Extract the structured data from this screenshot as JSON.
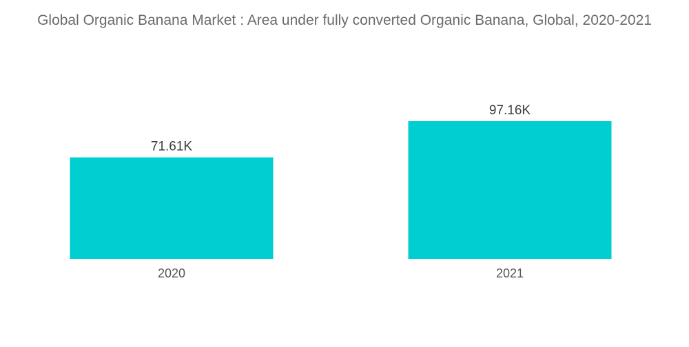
{
  "chart_data": {
    "type": "bar",
    "title": "Global Organic Banana Market : Area under fully converted Organic Banana, Global, 2020-2021",
    "categories": [
      "2020",
      "2021"
    ],
    "values": [
      71.61,
      97.16
    ],
    "data_labels": [
      "71.61K",
      "97.16K"
    ],
    "xlabel": "",
    "ylabel": "",
    "grid": false,
    "legend": "none",
    "bar_color": "#00CED1"
  }
}
